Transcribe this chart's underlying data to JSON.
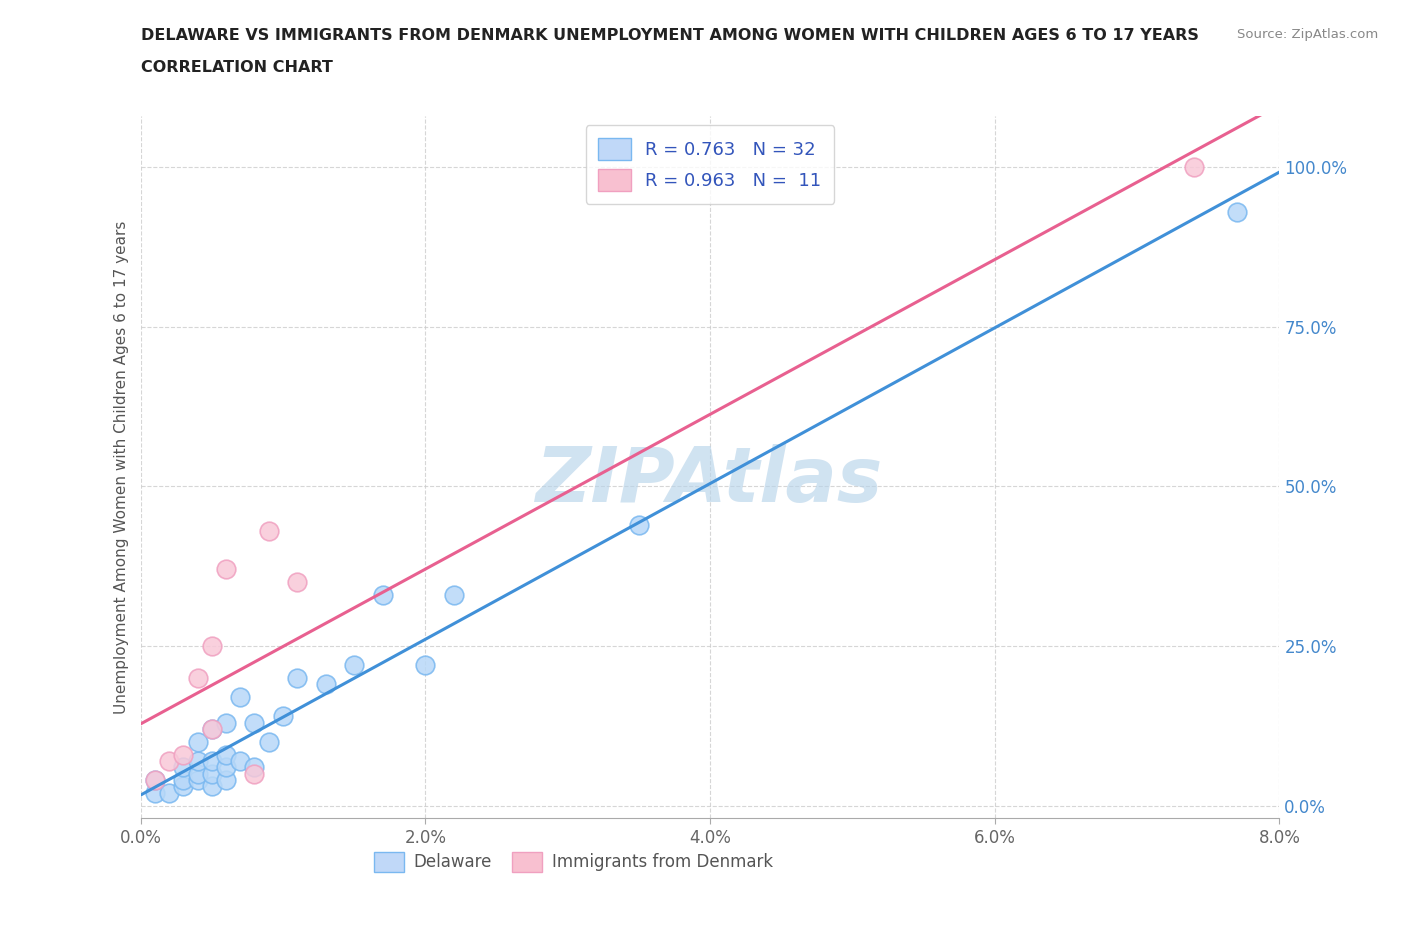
{
  "title_line1": "DELAWARE VS IMMIGRANTS FROM DENMARK UNEMPLOYMENT AMONG WOMEN WITH CHILDREN AGES 6 TO 17 YEARS",
  "title_line2": "CORRELATION CHART",
  "source_text": "Source: ZipAtlas.com",
  "ylabel": "Unemployment Among Women with Children Ages 6 to 17 years",
  "xlim": [
    0.0,
    0.08
  ],
  "ylim": [
    -0.02,
    1.08
  ],
  "xticks": [
    0.0,
    0.02,
    0.04,
    0.06,
    0.08
  ],
  "xtick_labels": [
    "0.0%",
    "2.0%",
    "4.0%",
    "6.0%",
    "8.0%"
  ],
  "yticks": [
    0.0,
    0.25,
    0.5,
    0.75,
    1.0
  ],
  "ytick_labels": [
    "0.0%",
    "25.0%",
    "50.0%",
    "75.0%",
    "100.0%"
  ],
  "watermark": "ZIPAtlas",
  "watermark_color": "#b8d4ea",
  "blue_dot_face": "#b8d8f8",
  "blue_dot_edge": "#7ab8f0",
  "pink_dot_face": "#f8c8d8",
  "pink_dot_edge": "#f0a0c0",
  "line_blue": "#4090d8",
  "line_pink": "#e86090",
  "R_blue": 0.763,
  "N_blue": 32,
  "R_pink": 0.963,
  "N_pink": 11,
  "title_color": "#222222",
  "axis_label_color": "#555555",
  "tick_color_x": "#666666",
  "tick_color_y": "#4488cc",
  "legend_R_color": "#3355bb",
  "background_color": "#ffffff",
  "grid_color": "#cccccc",
  "legend_box_blue": "#c0d8f8",
  "legend_box_pink": "#f8c0d0",
  "legend_border": "#cccccc",
  "blue_scatter_x": [
    0.001,
    0.001,
    0.002,
    0.003,
    0.003,
    0.003,
    0.004,
    0.004,
    0.004,
    0.004,
    0.005,
    0.005,
    0.005,
    0.005,
    0.006,
    0.006,
    0.006,
    0.006,
    0.007,
    0.007,
    0.008,
    0.008,
    0.009,
    0.01,
    0.011,
    0.013,
    0.015,
    0.017,
    0.02,
    0.022,
    0.035,
    0.077
  ],
  "blue_scatter_y": [
    0.02,
    0.04,
    0.02,
    0.03,
    0.04,
    0.06,
    0.04,
    0.05,
    0.07,
    0.1,
    0.03,
    0.05,
    0.07,
    0.12,
    0.04,
    0.06,
    0.08,
    0.13,
    0.07,
    0.17,
    0.06,
    0.13,
    0.1,
    0.14,
    0.2,
    0.19,
    0.22,
    0.33,
    0.22,
    0.33,
    0.44,
    0.93
  ],
  "pink_scatter_x": [
    0.001,
    0.002,
    0.003,
    0.004,
    0.005,
    0.005,
    0.006,
    0.008,
    0.009,
    0.011,
    0.074
  ],
  "pink_scatter_y": [
    0.04,
    0.07,
    0.08,
    0.2,
    0.12,
    0.25,
    0.37,
    0.05,
    0.43,
    0.35,
    1.0
  ],
  "source_color": "#888888"
}
